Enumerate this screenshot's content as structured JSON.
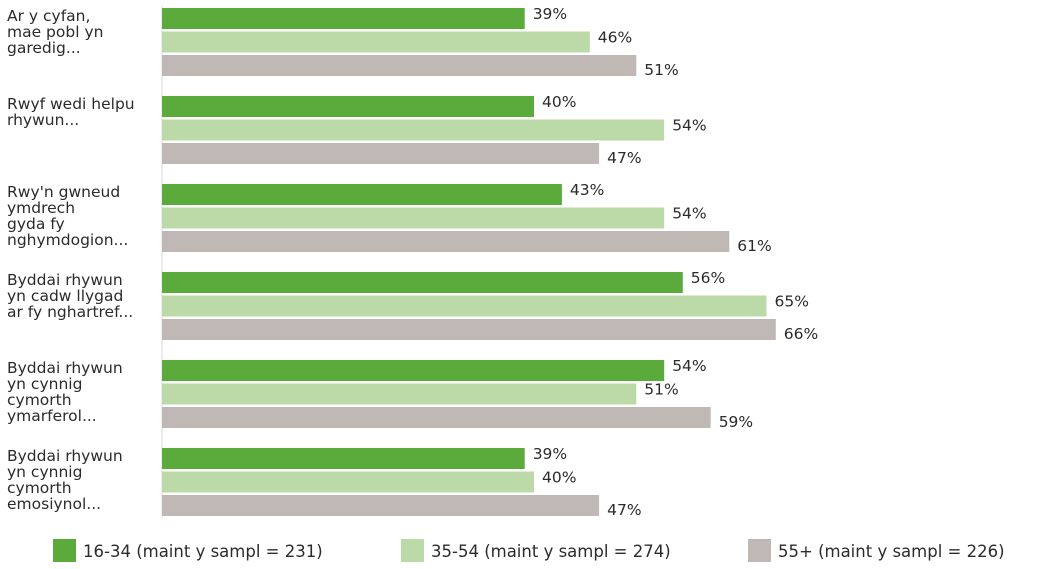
{
  "chart_data": {
    "type": "bar",
    "orientation": "horizontal",
    "categories": [
      "Ar y cyfan, mae pobl yn garedig...",
      "Rwyf wedi helpu rhywun...",
      "Rwy'n gwneud ymdrech gyda fy nghymdogion...",
      "Byddai rhywun yn cadw llygad ar fy nghartref...",
      "Byddai rhywun yn cynnig cymorth ymarferol...",
      "Byddai rhywun yn cynnig cymorth emosiynol..."
    ],
    "category_lines": [
      [
        "Ar y cyfan,",
        "mae pobl yn",
        "garedig..."
      ],
      [
        "Rwyf wedi helpu",
        "rhywun..."
      ],
      [
        "Rwy'n gwneud",
        "ymdrech",
        "gyda fy",
        "nghymdogion..."
      ],
      [
        "Byddai rhywun",
        "yn cadw llygad",
        "ar fy nghartref..."
      ],
      [
        "Byddai rhywun",
        "yn cynnig",
        "cymorth",
        "ymarferol..."
      ],
      [
        "Byddai rhywun",
        "yn cynnig",
        "cymorth",
        "emosiynol..."
      ]
    ],
    "series": [
      {
        "name": "16-34 (maint y sampl = 231)",
        "color": "#5aab3c",
        "values": [
          39,
          40,
          43,
          56,
          54,
          39
        ]
      },
      {
        "name": "35-54 (maint y sampl = 274)",
        "color": "#bcdaa8",
        "values": [
          46,
          54,
          54,
          65,
          51,
          40
        ]
      },
      {
        "name": "55+ (maint y sampl = 226)",
        "color": "#bfb8b5",
        "values": [
          51,
          47,
          61,
          66,
          59,
          47
        ]
      }
    ],
    "value_suffix": "%",
    "xlim": [
      0,
      100
    ],
    "grid": false,
    "legend_position": "bottom"
  }
}
